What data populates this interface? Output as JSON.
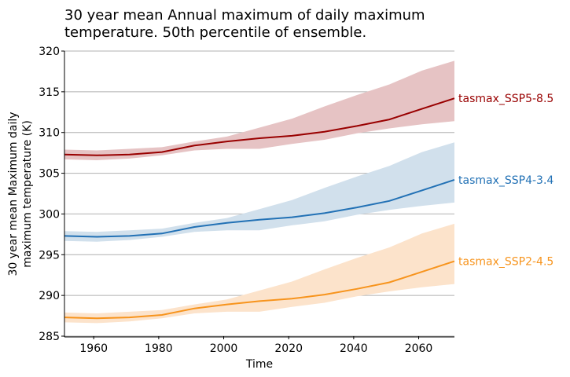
{
  "chart_data": {
    "type": "line",
    "title_lines": [
      "30 year mean Annual maximum of daily maximum",
      "temperature. 50th percentile of ensemble."
    ],
    "xlabel": "Time",
    "ylabel_lines": [
      "30 year mean Maximum daily",
      "maximum temperature (K)"
    ],
    "xlim": [
      1951,
      2071
    ],
    "ylim": [
      285,
      320
    ],
    "xticks": [
      "1960",
      "1980",
      "2000",
      "2020",
      "2040",
      "2060"
    ],
    "yticks": [
      "285",
      "290",
      "295",
      "300",
      "305",
      "310",
      "315",
      "320"
    ],
    "grid": "horizontal",
    "legend": "none; series labelled at right end of lines",
    "x": [
      1951,
      1961,
      1971,
      1981,
      1991,
      2001,
      2011,
      2021,
      2031,
      2041,
      2051,
      2061,
      2071
    ],
    "series": [
      {
        "name": "tasmax_SSP5-8.5",
        "color": "#990000",
        "band_color": "#e6c3c4",
        "values": [
          307.3,
          307.2,
          307.3,
          307.6,
          308.4,
          308.9,
          309.3,
          309.6,
          310.1,
          310.8,
          311.6,
          312.9,
          314.2
        ],
        "upper": [
          307.9,
          307.8,
          308.0,
          308.2,
          308.9,
          309.5,
          310.6,
          311.7,
          313.2,
          314.6,
          315.9,
          317.6,
          318.8
        ],
        "lower": [
          306.7,
          306.6,
          306.8,
          307.2,
          307.8,
          308.0,
          308.0,
          308.6,
          309.1,
          309.9,
          310.5,
          311.0,
          311.4
        ]
      },
      {
        "name": "tasmax_SSP4-3.4",
        "color": "#2271b5",
        "band_color": "#d1e0ec",
        "values": [
          297.3,
          297.2,
          297.3,
          297.6,
          298.4,
          298.9,
          299.3,
          299.6,
          300.1,
          300.8,
          301.6,
          302.9,
          304.2
        ],
        "upper": [
          297.9,
          297.8,
          298.0,
          298.2,
          298.9,
          299.5,
          300.6,
          301.7,
          303.2,
          304.6,
          305.9,
          307.6,
          308.8
        ],
        "lower": [
          296.7,
          296.6,
          296.8,
          297.2,
          297.8,
          298.0,
          298.0,
          298.6,
          299.1,
          299.9,
          300.5,
          301.0,
          301.4
        ]
      },
      {
        "name": "tasmax_SSP2-4.5",
        "color": "#f7941d",
        "band_color": "#fce3cb",
        "values": [
          287.3,
          287.2,
          287.3,
          287.6,
          288.4,
          288.9,
          289.3,
          289.6,
          290.1,
          290.8,
          291.6,
          292.9,
          294.2
        ],
        "upper": [
          287.9,
          287.8,
          288.0,
          288.2,
          288.9,
          289.5,
          290.6,
          291.7,
          293.2,
          294.6,
          295.9,
          297.6,
          298.8
        ],
        "lower": [
          286.7,
          286.6,
          286.8,
          287.2,
          287.8,
          288.0,
          288.0,
          288.6,
          289.1,
          289.9,
          290.5,
          291.0,
          291.4
        ]
      }
    ]
  }
}
